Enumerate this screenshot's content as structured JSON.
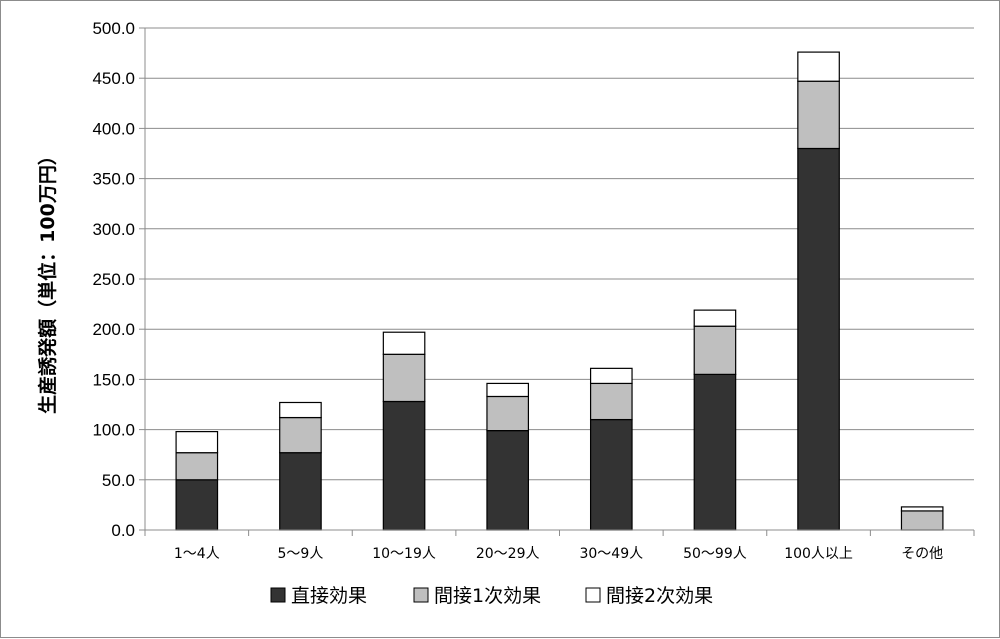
{
  "chart_data": {
    "type": "bar",
    "stacked": true,
    "ylabel": "生産誘発額（単位：100万円）",
    "ylim": [
      0,
      500
    ],
    "ytick_step": 50,
    "ytick_labels": [
      "0.0",
      "50.0",
      "100.0",
      "150.0",
      "200.0",
      "250.0",
      "300.0",
      "350.0",
      "400.0",
      "450.0",
      "500.0"
    ],
    "grid": true,
    "legend_position": "bottom",
    "categories": [
      "1～4人",
      "5～9人",
      "10～19人",
      "20～29人",
      "30～49人",
      "50～99人",
      "100人以上",
      "その他"
    ],
    "series": [
      {
        "name": "直接効果",
        "color": "#333333",
        "values": [
          50,
          77,
          128,
          99,
          110,
          155,
          380,
          0
        ]
      },
      {
        "name": "間接1次効果",
        "color": "#bfbfbf",
        "values": [
          27,
          35,
          47,
          34,
          36,
          48,
          67,
          19
        ]
      },
      {
        "name": "間接2次効果",
        "color": "#ffffff",
        "values": [
          21,
          15,
          22,
          13,
          15,
          16,
          29,
          4
        ]
      }
    ]
  }
}
